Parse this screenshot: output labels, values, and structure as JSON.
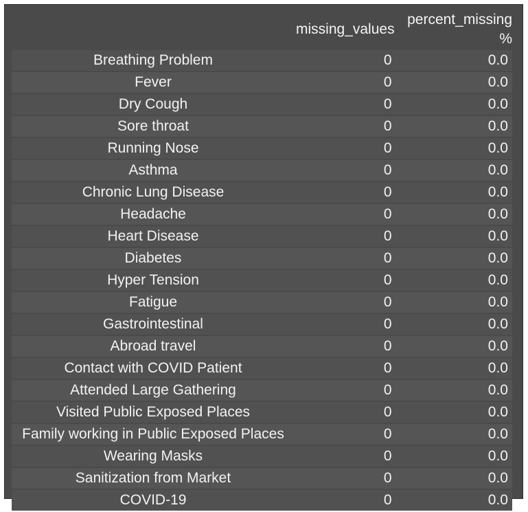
{
  "table": {
    "columns": [
      "missing_values",
      "percent_missing %"
    ],
    "rows": [
      {
        "label": "Breathing Problem",
        "missing_values": "0",
        "percent_missing": "0.0"
      },
      {
        "label": "Fever",
        "missing_values": "0",
        "percent_missing": "0.0"
      },
      {
        "label": "Dry Cough",
        "missing_values": "0",
        "percent_missing": "0.0"
      },
      {
        "label": "Sore throat",
        "missing_values": "0",
        "percent_missing": "0.0"
      },
      {
        "label": "Running Nose",
        "missing_values": "0",
        "percent_missing": "0.0"
      },
      {
        "label": "Asthma",
        "missing_values": "0",
        "percent_missing": "0.0"
      },
      {
        "label": "Chronic Lung Disease",
        "missing_values": "0",
        "percent_missing": "0.0"
      },
      {
        "label": "Headache",
        "missing_values": "0",
        "percent_missing": "0.0"
      },
      {
        "label": "Heart Disease",
        "missing_values": "0",
        "percent_missing": "0.0"
      },
      {
        "label": "Diabetes",
        "missing_values": "0",
        "percent_missing": "0.0"
      },
      {
        "label": "Hyper Tension",
        "missing_values": "0",
        "percent_missing": "0.0"
      },
      {
        "label": "Fatigue",
        "missing_values": "0",
        "percent_missing": "0.0"
      },
      {
        "label": "Gastrointestinal",
        "missing_values": "0",
        "percent_missing": "0.0"
      },
      {
        "label": "Abroad travel",
        "missing_values": "0",
        "percent_missing": "0.0"
      },
      {
        "label": "Contact with COVID Patient",
        "missing_values": "0",
        "percent_missing": "0.0"
      },
      {
        "label": "Attended Large Gathering",
        "missing_values": "0",
        "percent_missing": "0.0"
      },
      {
        "label": "Visited Public Exposed Places",
        "missing_values": "0",
        "percent_missing": "0.0"
      },
      {
        "label": "Family working in Public Exposed Places",
        "missing_values": "0",
        "percent_missing": "0.0"
      },
      {
        "label": "Wearing Masks",
        "missing_values": "0",
        "percent_missing": "0.0"
      },
      {
        "label": "Sanitization from Market",
        "missing_values": "0",
        "percent_missing": "0.0"
      },
      {
        "label": "COVID-19",
        "missing_values": "0",
        "percent_missing": "0.0"
      }
    ]
  },
  "colors": {
    "panel_background": "#4a4a4a",
    "row_background": "#555555",
    "text": "#f2f2f2"
  }
}
